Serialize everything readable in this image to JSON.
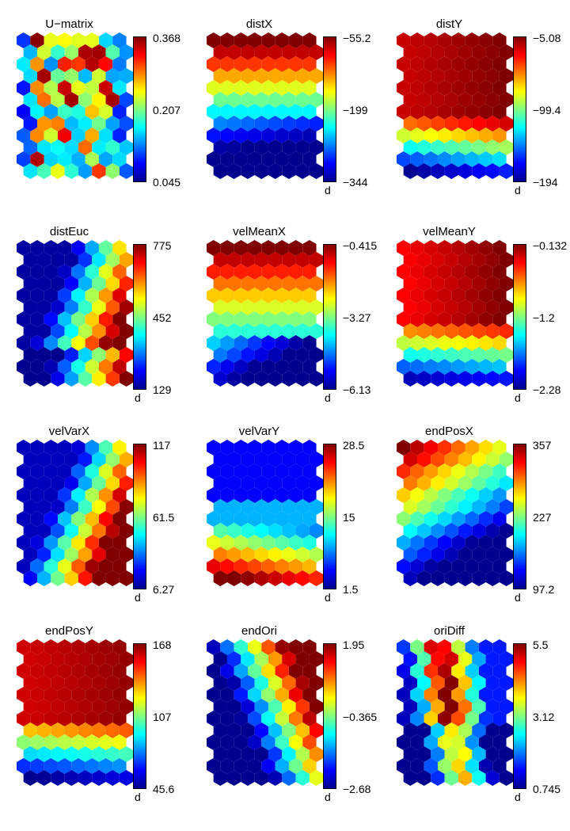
{
  "figure": {
    "colormap": [
      "#00008f",
      "#0000ff",
      "#00ffff",
      "#ffff00",
      "#ff0000",
      "#800000"
    ],
    "map_grid": {
      "cols": 8,
      "rows": 12,
      "lattice": "hexagonal"
    }
  },
  "chart_data": [
    {
      "type": "heatmap",
      "title": "U−matrix",
      "ticks": [
        "0.368",
        "0.207",
        "0.045"
      ],
      "unit": "",
      "pattern": "umatrix",
      "cmin": 0.045,
      "cmax": 0.368
    },
    {
      "type": "heatmap",
      "title": "distX",
      "ticks": [
        "−55.2",
        "−199",
        "−344"
      ],
      "unit": "d",
      "pattern": "distX",
      "cmin": -344,
      "cmax": -55.2
    },
    {
      "type": "heatmap",
      "title": "distY",
      "ticks": [
        "−5.08",
        "−99.4",
        "−194"
      ],
      "unit": "d",
      "pattern": "distY",
      "cmin": -194,
      "cmax": -5.08
    },
    {
      "type": "heatmap",
      "title": "distEuc",
      "ticks": [
        "775",
        "452",
        "129"
      ],
      "unit": "d",
      "pattern": "distEuc",
      "cmin": 129,
      "cmax": 775
    },
    {
      "type": "heatmap",
      "title": "velMeanX",
      "ticks": [
        "−0.415",
        "−3.27",
        "−6.13"
      ],
      "unit": "d",
      "pattern": "velMeanX",
      "cmin": -6.13,
      "cmax": -0.415
    },
    {
      "type": "heatmap",
      "title": "velMeanY",
      "ticks": [
        "−0.132",
        "−1.2",
        "−2.28"
      ],
      "unit": "d",
      "pattern": "velMeanY",
      "cmin": -2.28,
      "cmax": -0.132
    },
    {
      "type": "heatmap",
      "title": "velVarX",
      "ticks": [
        "117",
        "61.5",
        "6.27"
      ],
      "unit": "d",
      "pattern": "velVarX",
      "cmin": 6.27,
      "cmax": 117
    },
    {
      "type": "heatmap",
      "title": "velVarY",
      "ticks": [
        "28.5",
        "15",
        "1.5"
      ],
      "unit": "d",
      "pattern": "velVarY",
      "cmin": 1.5,
      "cmax": 28.5
    },
    {
      "type": "heatmap",
      "title": "endPosX",
      "ticks": [
        "357",
        "227",
        "97.2"
      ],
      "unit": "d",
      "pattern": "endPosX",
      "cmin": 97.2,
      "cmax": 357
    },
    {
      "type": "heatmap",
      "title": "endPosY",
      "ticks": [
        "168",
        "107",
        "45.6"
      ],
      "unit": "d",
      "pattern": "endPosY",
      "cmin": 45.6,
      "cmax": 168
    },
    {
      "type": "heatmap",
      "title": "endOri",
      "ticks": [
        "1.95",
        "−0.365",
        "−2.68"
      ],
      "unit": "d",
      "pattern": "endOri",
      "cmin": -2.68,
      "cmax": 1.95
    },
    {
      "type": "heatmap",
      "title": "oriDiff",
      "ticks": [
        "5.5",
        "3.12",
        "0.745"
      ],
      "unit": "d",
      "pattern": "oriDiff",
      "cmin": 0.745,
      "cmax": 5.5
    }
  ]
}
